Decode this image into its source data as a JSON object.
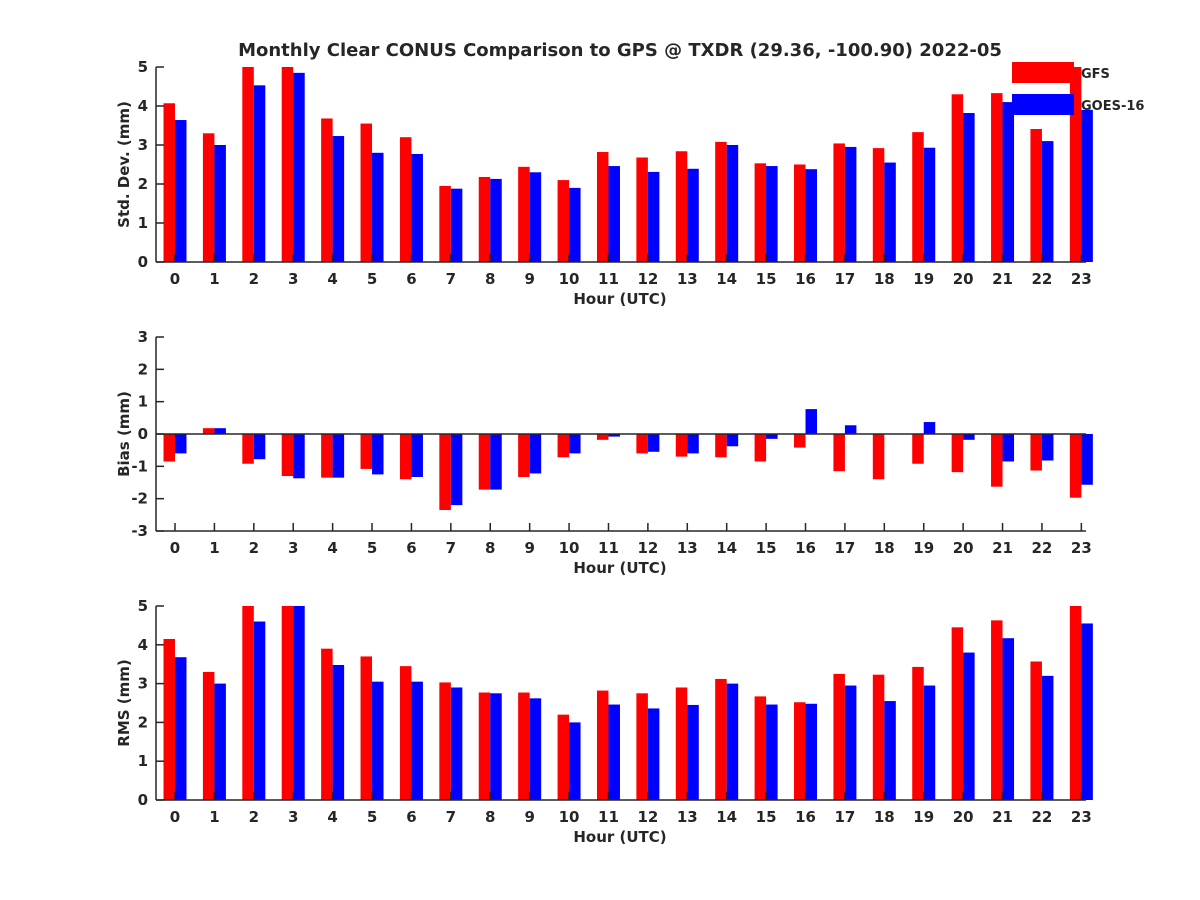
{
  "title": "Monthly Clear CONUS Comparison to GPS @ TXDR (29.36, -100.90) 2022-05",
  "colors": {
    "gfs": "#ff0000",
    "goes": "#0000ff",
    "axis": "#262626"
  },
  "legend": [
    {
      "name": "GFS",
      "color": "#ff0000"
    },
    {
      "name": "GOES-16",
      "color": "#0000ff"
    }
  ],
  "chart_data": [
    {
      "type": "bar",
      "ylabel": "Std. Dev. (mm)",
      "xlabel": "Hour (UTC)",
      "ylim": [
        0,
        5
      ],
      "yticks": [
        "0",
        "1",
        "2",
        "3",
        "4",
        "5"
      ],
      "categories": [
        "0",
        "1",
        "2",
        "3",
        "4",
        "5",
        "6",
        "7",
        "8",
        "9",
        "10",
        "11",
        "12",
        "13",
        "14",
        "15",
        "16",
        "17",
        "18",
        "19",
        "20",
        "21",
        "22",
        "23"
      ],
      "series": [
        {
          "name": "GFS",
          "values": [
            4.07,
            3.3,
            5.0,
            5.0,
            3.68,
            3.55,
            3.2,
            1.95,
            2.18,
            2.44,
            2.1,
            2.82,
            2.68,
            2.84,
            3.08,
            2.53,
            2.5,
            3.04,
            2.92,
            3.33,
            4.3,
            4.33,
            3.41,
            5.0
          ]
        },
        {
          "name": "GOES-16",
          "values": [
            3.64,
            3.0,
            4.53,
            4.85,
            3.23,
            2.8,
            2.77,
            1.88,
            2.13,
            2.3,
            1.9,
            2.46,
            2.31,
            2.39,
            3.0,
            2.46,
            2.38,
            2.95,
            2.55,
            2.93,
            3.82,
            4.1,
            3.1,
            3.9
          ]
        }
      ]
    },
    {
      "type": "bar",
      "ylabel": "Bias (mm)",
      "xlabel": "Hour (UTC)",
      "ylim": [
        -3,
        3
      ],
      "yticks": [
        "-3",
        "-2",
        "-1",
        "0",
        "1",
        "2",
        "3"
      ],
      "categories": [
        "0",
        "1",
        "2",
        "3",
        "4",
        "5",
        "6",
        "7",
        "8",
        "9",
        "10",
        "11",
        "12",
        "13",
        "14",
        "15",
        "16",
        "17",
        "18",
        "19",
        "20",
        "21",
        "22",
        "23"
      ],
      "series": [
        {
          "name": "GFS",
          "values": [
            -0.85,
            0.18,
            -0.92,
            -1.3,
            -1.35,
            -1.08,
            -1.4,
            -2.35,
            -1.72,
            -1.33,
            -0.72,
            -0.18,
            -0.6,
            -0.7,
            -0.72,
            -0.85,
            -0.42,
            -1.15,
            -1.4,
            -0.92,
            -1.18,
            -1.63,
            -1.13,
            -1.97
          ]
        },
        {
          "name": "GOES-16",
          "values": [
            -0.6,
            0.18,
            -0.78,
            -1.37,
            -1.35,
            -1.25,
            -1.33,
            -2.2,
            -1.72,
            -1.22,
            -0.6,
            -0.08,
            -0.55,
            -0.6,
            -0.38,
            -0.15,
            0.77,
            0.27,
            0.0,
            0.37,
            -0.18,
            -0.85,
            -0.82,
            -1.57
          ]
        }
      ]
    },
    {
      "type": "bar",
      "ylabel": "RMS (mm)",
      "xlabel": "Hour (UTC)",
      "ylim": [
        0,
        5
      ],
      "yticks": [
        "0",
        "1",
        "2",
        "3",
        "4",
        "5"
      ],
      "categories": [
        "0",
        "1",
        "2",
        "3",
        "4",
        "5",
        "6",
        "7",
        "8",
        "9",
        "10",
        "11",
        "12",
        "13",
        "14",
        "15",
        "16",
        "17",
        "18",
        "19",
        "20",
        "21",
        "22",
        "23"
      ],
      "series": [
        {
          "name": "GFS",
          "values": [
            4.15,
            3.3,
            5.0,
            5.0,
            3.9,
            3.7,
            3.45,
            3.03,
            2.77,
            2.77,
            2.2,
            2.82,
            2.75,
            2.9,
            3.12,
            2.67,
            2.52,
            3.25,
            3.23,
            3.43,
            4.45,
            4.63,
            3.57,
            5.0
          ]
        },
        {
          "name": "GOES-16",
          "values": [
            3.68,
            3.0,
            4.6,
            5.0,
            3.48,
            3.05,
            3.05,
            2.9,
            2.75,
            2.62,
            2.0,
            2.46,
            2.36,
            2.45,
            3.0,
            2.46,
            2.48,
            2.95,
            2.55,
            2.95,
            3.8,
            4.17,
            3.2,
            4.55
          ]
        }
      ]
    }
  ]
}
